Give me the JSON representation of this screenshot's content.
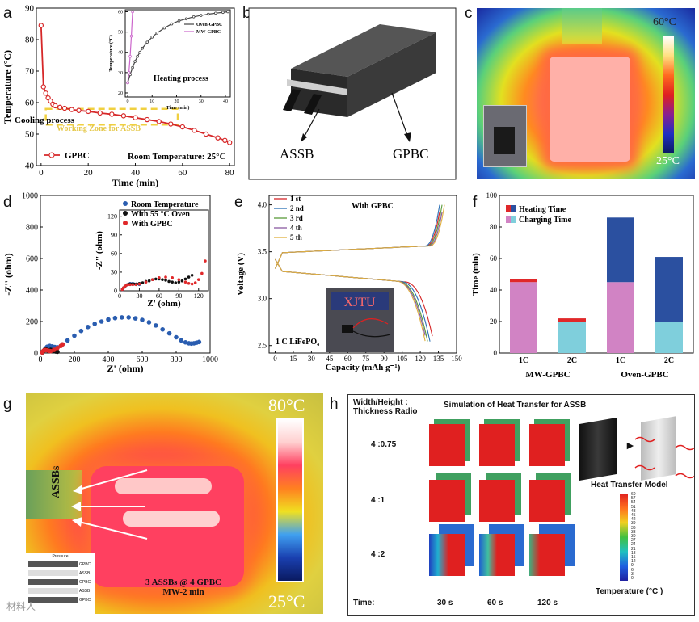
{
  "panel_letters": {
    "a": "a",
    "b": "b",
    "c": "c",
    "d": "d",
    "e": "e",
    "f": "f",
    "g": "g",
    "h": "h"
  },
  "chart_data": [
    {
      "panel": "a",
      "type": "line",
      "xlabel": "Time (min)",
      "ylabel": "Temperature (°C)",
      "xlim": [
        -2,
        82
      ],
      "ylim": [
        40,
        90
      ],
      "xticks": [
        0,
        20,
        40,
        60,
        80
      ],
      "yticks": [
        40,
        50,
        60,
        70,
        80,
        90
      ],
      "series": [
        {
          "name": "GPBC",
          "color": "#d62728",
          "x": [
            0,
            1,
            2,
            3,
            4,
            5,
            6,
            8,
            10,
            13,
            16,
            20,
            25,
            30,
            35,
            40,
            45,
            50,
            55,
            60,
            65,
            70,
            75,
            78,
            80
          ],
          "y": [
            84.5,
            65,
            63,
            61.5,
            60.5,
            59.5,
            59,
            58.5,
            58.2,
            57.8,
            57.5,
            57.2,
            56.7,
            56.3,
            55.8,
            55.2,
            54.6,
            54,
            53.2,
            52.3,
            51.2,
            50,
            48.8,
            48,
            47.3
          ]
        }
      ],
      "annotations": {
        "zone": "Working Zone for ASSB",
        "cooling": "Cooling process",
        "room": "Room Temperature: 25°C"
      },
      "zone_range": {
        "x": [
          2,
          58
        ],
        "y": [
          53,
          58
        ]
      },
      "inset": {
        "xlabel": "Time (min)",
        "ylabel": "Temperature (°C)",
        "xlim": [
          -1,
          42
        ],
        "ylim": [
          18,
          61
        ],
        "xticks": [
          0,
          10,
          20,
          30,
          40
        ],
        "yticks": [
          20,
          30,
          40,
          50,
          60
        ],
        "title": "Heating process",
        "series": [
          {
            "name": "Oven-GPBC",
            "color": "#444444",
            "x": [
              0,
              1,
              2,
              3,
              4,
              5,
              6,
              8,
              10,
              12,
              15,
              18,
              21,
              24,
              27,
              30,
              33,
              36,
              39,
              41
            ],
            "y": [
              25,
              29,
              32.5,
              35.5,
              38,
              40,
              42,
              45,
              47.5,
              49.5,
              52,
              54,
              55.5,
              56.5,
              57.5,
              58.2,
              58.8,
              59.3,
              59.7,
              60
            ]
          },
          {
            "name": "MW-GPBC",
            "color": "#cc66cc",
            "x": [
              0,
              0.5,
              1,
              1.5,
              2
            ],
            "y": [
              25,
              30,
              38,
              48,
              60
            ]
          }
        ]
      }
    },
    {
      "panel": "d",
      "type": "scatter",
      "xlabel": "Z' (ohm)",
      "ylabel": "-Z'' (ohm)",
      "xlim": [
        0,
        1000
      ],
      "ylim": [
        0,
        1000
      ],
      "xticks": [
        0,
        200,
        400,
        600,
        800,
        1000
      ],
      "yticks": [
        0,
        200,
        400,
        600,
        800,
        1000
      ],
      "series": [
        {
          "name": "Room Temperature",
          "color": "#2a5db0",
          "x": [
            22,
            30,
            40,
            55,
            70,
            85,
            100,
            130,
            160,
            200,
            240,
            280,
            320,
            360,
            400,
            440,
            480,
            520,
            560,
            600,
            640,
            680,
            720,
            760,
            800,
            830,
            855,
            875,
            890,
            905,
            920,
            935
          ],
          "y": [
            15,
            30,
            40,
            45,
            42,
            38,
            36,
            55,
            80,
            110,
            140,
            165,
            185,
            200,
            213,
            222,
            226,
            226,
            220,
            210,
            195,
            175,
            150,
            125,
            100,
            80,
            68,
            62,
            60,
            62,
            66,
            70
          ]
        },
        {
          "name": "With 55 °C Oven",
          "color": "#111111",
          "x": [
            12,
            16,
            20,
            25,
            32,
            40,
            50,
            60,
            70,
            80,
            90,
            100
          ],
          "y": [
            4,
            8,
            14,
            20,
            22,
            20,
            16,
            20,
            18,
            14,
            10,
            8
          ]
        },
        {
          "name": "With GPBC",
          "color": "#e0282a",
          "x": [
            10,
            14,
            18,
            24,
            30,
            40,
            50,
            60,
            80,
            100,
            120,
            130
          ],
          "y": [
            4,
            9,
            14,
            18,
            19,
            17,
            14,
            12,
            20,
            32,
            45,
            55
          ]
        }
      ],
      "inset": {
        "xlabel": "Z' (ohm)",
        "ylabel": "-Z'' (ohm)",
        "xlim": [
          0,
          135
        ],
        "ylim": [
          0,
          130
        ],
        "xticks": [
          0,
          30,
          60,
          90,
          120
        ],
        "yticks": [
          0,
          30,
          60,
          90,
          120
        ],
        "series": [
          {
            "name": "Room Temperature",
            "color": "#2a5db0",
            "x": [
              5,
              8,
              12,
              16,
              20,
              25,
              30
            ],
            "y": [
              2,
              6,
              10,
              12,
              12,
              11,
              10
            ]
          },
          {
            "name": "With 55 °C Oven",
            "color": "#111111",
            "x": [
              4,
              6,
              8,
              10,
              12,
              15,
              18,
              22,
              26,
              30,
              35,
              40,
              45,
              50,
              55,
              60,
              65,
              70,
              75,
              80,
              85,
              90,
              95,
              100,
              105,
              110
            ],
            "y": [
              2,
              5,
              7,
              9,
              10,
              11,
              11,
              11,
              11,
              12,
              13,
              15,
              16,
              18,
              19,
              19,
              18,
              17,
              15,
              14,
              13,
              14,
              16,
              19,
              22,
              25
            ]
          },
          {
            "name": "With GPBC",
            "color": "#e0282a",
            "x": [
              4,
              6,
              8,
              10,
              13,
              16,
              20,
              25,
              30,
              40,
              50,
              60,
              70,
              80,
              90,
              100,
              105,
              110,
              115,
              120,
              125,
              130
            ],
            "y": [
              2,
              5,
              7,
              9,
              10,
              10,
              10,
              10,
              11,
              14,
              18,
              21,
              22,
              21,
              18,
              14,
              12,
              11,
              13,
              18,
              28,
              48
            ]
          }
        ]
      }
    },
    {
      "panel": "e",
      "type": "line",
      "xlabel": "Capacity (mAh g⁻¹)",
      "ylabel": "Voltage (V)",
      "xlim": [
        -5,
        150
      ],
      "ylim": [
        2.42,
        4.1
      ],
      "xticks": [
        0,
        15,
        30,
        45,
        60,
        75,
        90,
        105,
        120,
        135,
        150
      ],
      "yticks": [
        2.5,
        3.0,
        3.5,
        4.0
      ],
      "title": "With GPBC",
      "note": "1 C LiFePO₄",
      "photo_text": "XJTU",
      "series": [
        {
          "name": "1 st",
          "color": "#d62728",
          "cap_charge": 137,
          "cap_discharge": 131
        },
        {
          "name": "2 nd",
          "color": "#2a6fb5",
          "cap_charge": 136,
          "cap_discharge": 128
        },
        {
          "name": "3 rd",
          "color": "#5a9a3a",
          "cap_charge": 138,
          "cap_discharge": 126
        },
        {
          "name": "4 th",
          "color": "#8a5aa0",
          "cap_charge": 139,
          "cap_discharge": 125
        },
        {
          "name": "5 th",
          "color": "#e0b040",
          "cap_charge": 140,
          "cap_discharge": 124
        }
      ]
    },
    {
      "panel": "f",
      "type": "bar",
      "ylabel": "Time (min)",
      "ylim": [
        0,
        100
      ],
      "yticks": [
        0,
        20,
        40,
        60,
        80,
        100
      ],
      "categories": [
        "1C",
        "2C",
        "1C",
        "2C"
      ],
      "groups": [
        "MW-GPBC",
        "Oven-GPBC"
      ],
      "series": [
        {
          "name": "Charging Time",
          "values": [
            45,
            20,
            45,
            20
          ],
          "colors": [
            "#d183c4",
            "#7fcfdc",
            "#d183c4",
            "#7fcfdc"
          ]
        },
        {
          "name": "Heating Time",
          "values": [
            2,
            2,
            41,
            41
          ],
          "colors": [
            "#e0282a",
            "#e0282a",
            "#2b50a0",
            "#2b50a0"
          ]
        }
      ],
      "legend": [
        {
          "name": "Heating Time",
          "colors": [
            "#e0282a",
            "#2b50a0"
          ]
        },
        {
          "name": "Charging Time",
          "colors": [
            "#d183c4",
            "#7fcfdc"
          ]
        }
      ]
    }
  ],
  "panel_b": {
    "assb": "ASSB",
    "gpbc": "GPBC"
  },
  "panel_c": {
    "top": "60°C",
    "bottom": "25°C"
  },
  "panel_g": {
    "top": "80°C",
    "bottom": "25°C",
    "assbs": "ASSBs",
    "cap1": "3 ASSBs @ 4 GPBC",
    "cap2": "MW-2 min",
    "schem_title": "Pressure",
    "schem_rows": [
      "GPBC",
      "ASSB",
      "GPBC",
      "ASSB",
      "GPBC"
    ]
  },
  "panel_h": {
    "title": "Simulation of Heat Transfer for ASSB",
    "header1": "Width/Height :",
    "header2": "Thickness Radio",
    "rows": [
      "4 :0.75",
      "4 :1",
      "4 :2"
    ],
    "time_label": "Time:",
    "times": [
      "30 s",
      "60 s",
      "120 s"
    ],
    "model_label": "Heat Transfer Model",
    "scale_title": "Temperature (°C )",
    "scale_values": [
      "60",
      "57",
      "54",
      "51",
      "48",
      "45",
      "42",
      "39",
      "36",
      "33",
      "30",
      "27",
      "24",
      "21",
      "18",
      "15",
      "12",
      "9",
      "6",
      "3",
      "0"
    ]
  },
  "watermark": "材料人"
}
